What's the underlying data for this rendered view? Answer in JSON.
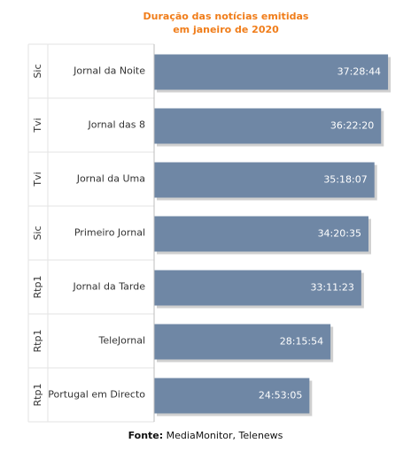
{
  "chart_data": {
    "type": "bar",
    "orientation": "horizontal",
    "title": [
      "Duração das notícias emitidas",
      "em janeiro de 2020"
    ],
    "source_label": "Fonte:",
    "source_value": "MediaMonitor, Telenews",
    "categories": [
      {
        "group": "Sic",
        "label": "Jornal da Noite"
      },
      {
        "group": "Tvi",
        "label": "Jornal das 8"
      },
      {
        "group": "Tvi",
        "label": "Jornal da Uma"
      },
      {
        "group": "Sic",
        "label": "Primeiro Jornal"
      },
      {
        "group": "Rtp1",
        "label": "Jornal da Tarde"
      },
      {
        "group": "Rtp1",
        "label": "TeleJornal"
      },
      {
        "group": "Rtp1",
        "label": "Portugal em Directo"
      }
    ],
    "values": [
      134924,
      130940,
      127087,
      123635,
      119483,
      101754,
      89585
    ],
    "value_labels": [
      "37:28:44",
      "36:22:20",
      "35:18:07",
      "34:20:35",
      "33:11:23",
      "28:15:54",
      "24:53:05"
    ],
    "value_unit": "seconds",
    "xlim": [
      0,
      140000
    ],
    "grid": false,
    "bar_color": "#6f87a5",
    "title_color": "#f07d1a"
  }
}
